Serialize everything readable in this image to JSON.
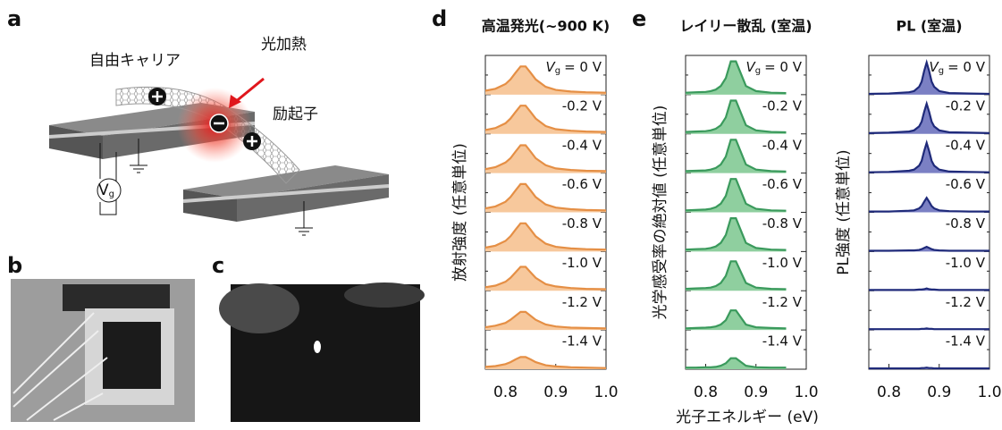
{
  "panels": {
    "a": {
      "label": "a",
      "free_carrier": "自由キャリア",
      "photoheating": "光加熱",
      "exciton": "励起子"
    },
    "b": {
      "label": "b"
    },
    "c": {
      "label": "c"
    }
  },
  "gate_symbol": {
    "main": "V",
    "sub": "g"
  },
  "x_label": "光子エネルギー (eV)",
  "chart_data": [
    {
      "type": "line",
      "panel_label": "d",
      "title": "高温発光(~900 K)",
      "y_label": "放射強度 (任意単位)",
      "color": "#e58f45",
      "fill_color": "#f7c89c",
      "x": [
        0.76,
        0.78,
        0.8,
        0.81,
        0.82,
        0.83,
        0.84,
        0.85,
        0.86,
        0.88,
        0.9,
        0.93,
        0.96,
        1.0
      ],
      "xlim": [
        0.76,
        1.0
      ],
      "xticks": [
        0.8,
        0.9,
        {
          "value": 1.0,
          "label": "1.0"
        }
      ],
      "ylim": [
        0,
        1
      ],
      "series": [
        {
          "name": "= 0 V",
          "values": [
            0.1,
            0.15,
            0.27,
            0.39,
            0.56,
            0.72,
            0.72,
            0.56,
            0.39,
            0.2,
            0.12,
            0.08,
            0.06,
            0.05
          ]
        },
        {
          "name": "-0.2 V",
          "values": [
            0.1,
            0.15,
            0.27,
            0.39,
            0.56,
            0.72,
            0.72,
            0.56,
            0.39,
            0.2,
            0.12,
            0.08,
            0.06,
            0.05
          ]
        },
        {
          "name": "-0.4 V",
          "values": [
            0.1,
            0.15,
            0.27,
            0.38,
            0.55,
            0.71,
            0.71,
            0.55,
            0.38,
            0.2,
            0.12,
            0.08,
            0.06,
            0.05
          ]
        },
        {
          "name": "-0.6 V",
          "values": [
            0.1,
            0.15,
            0.27,
            0.39,
            0.56,
            0.72,
            0.72,
            0.56,
            0.39,
            0.2,
            0.12,
            0.08,
            0.06,
            0.05
          ]
        },
        {
          "name": "-0.8 V",
          "values": [
            0.1,
            0.15,
            0.27,
            0.39,
            0.56,
            0.72,
            0.72,
            0.56,
            0.39,
            0.2,
            0.12,
            0.08,
            0.06,
            0.05
          ]
        },
        {
          "name": "-1.0 V",
          "values": [
            0.09,
            0.13,
            0.23,
            0.33,
            0.47,
            0.61,
            0.61,
            0.47,
            0.33,
            0.17,
            0.11,
            0.07,
            0.05,
            0.04
          ]
        },
        {
          "name": "-1.2 V",
          "values": [
            0.07,
            0.11,
            0.18,
            0.26,
            0.36,
            0.46,
            0.46,
            0.36,
            0.26,
            0.14,
            0.09,
            0.06,
            0.05,
            0.04
          ]
        },
        {
          "name": "-1.4 V",
          "values": [
            0.06,
            0.08,
            0.13,
            0.18,
            0.25,
            0.31,
            0.31,
            0.25,
            0.18,
            0.1,
            0.07,
            0.05,
            0.04,
            0.03
          ]
        }
      ]
    },
    {
      "type": "line",
      "panel_label": "e",
      "title": "レイリー散乱 (室温)",
      "y_label": "光学感受率の絶対値 (任意単位)",
      "color": "#3a9a5c",
      "fill_color": "#8fcf9f",
      "x": [
        0.76,
        0.78,
        0.8,
        0.81,
        0.82,
        0.83,
        0.84,
        0.85,
        0.86,
        0.88,
        0.9,
        0.93,
        0.96,
        1.0
      ],
      "xlim": [
        0.76,
        1.0
      ],
      "xticks": [
        0.8,
        0.9,
        {
          "value": 1.0,
          "label": "1.0"
        }
      ],
      "ylim": [
        0,
        1
      ],
      "series": [
        {
          "name": "= 0 V",
          "values": [
            0.05,
            0.06,
            0.07,
            0.09,
            0.13,
            0.22,
            0.42,
            0.85,
            0.85,
            0.22,
            0.09,
            0.05,
            0.04,
            null
          ]
        },
        {
          "name": "-0.2 V",
          "values": [
            0.05,
            0.06,
            0.07,
            0.09,
            0.13,
            0.22,
            0.42,
            0.85,
            0.85,
            0.22,
            0.09,
            0.05,
            0.04,
            null
          ]
        },
        {
          "name": "-0.4 V",
          "values": [
            0.05,
            0.06,
            0.07,
            0.09,
            0.13,
            0.22,
            0.42,
            0.85,
            0.85,
            0.22,
            0.09,
            0.05,
            0.04,
            null
          ]
        },
        {
          "name": "-0.6 V",
          "values": [
            0.05,
            0.06,
            0.07,
            0.09,
            0.13,
            0.22,
            0.42,
            0.85,
            0.85,
            0.22,
            0.09,
            0.05,
            0.04,
            null
          ]
        },
        {
          "name": "-0.8 V",
          "values": [
            0.05,
            0.06,
            0.07,
            0.09,
            0.13,
            0.22,
            0.42,
            0.85,
            0.85,
            0.22,
            0.09,
            0.05,
            0.04,
            null
          ]
        },
        {
          "name": "-1.0 V",
          "values": [
            0.05,
            0.06,
            0.07,
            0.08,
            0.12,
            0.2,
            0.38,
            0.75,
            0.75,
            0.2,
            0.08,
            0.05,
            0.04,
            null
          ]
        },
        {
          "name": "-1.2 V",
          "values": [
            0.04,
            0.05,
            0.06,
            0.07,
            0.09,
            0.14,
            0.25,
            0.5,
            0.5,
            0.14,
            0.07,
            0.05,
            0.04,
            null
          ]
        },
        {
          "name": "-1.4 V",
          "values": [
            0.04,
            0.04,
            0.05,
            0.05,
            0.06,
            0.09,
            0.15,
            0.28,
            0.28,
            0.09,
            0.05,
            0.04,
            0.04,
            null
          ]
        }
      ]
    },
    {
      "type": "line",
      "title": "PL (室温)",
      "y_label": "PL強度 (任意単位)",
      "color": "#1f2a7a",
      "fill_color": "#7b80c4",
      "x": [
        0.76,
        0.8,
        0.84,
        0.85,
        0.86,
        0.865,
        0.87,
        0.875,
        0.88,
        0.885,
        0.89,
        0.9,
        0.92,
        0.96,
        1.0
      ],
      "xlim": [
        0.76,
        1.0
      ],
      "xticks": [
        0.8,
        0.9,
        {
          "value": 1.0,
          "label": "1.0"
        }
      ],
      "ylim": [
        0,
        1
      ],
      "series": [
        {
          "name": "= 0 V",
          "values": [
            0.02,
            0.03,
            0.06,
            0.09,
            0.2,
            0.33,
            0.6,
            0.82,
            0.6,
            0.33,
            0.2,
            0.09,
            0.04,
            0.03,
            0.02
          ]
        },
        {
          "name": "-0.2 V",
          "values": [
            0.02,
            0.03,
            0.06,
            0.09,
            0.19,
            0.31,
            0.56,
            0.77,
            0.56,
            0.31,
            0.19,
            0.09,
            0.04,
            0.03,
            0.02
          ]
        },
        {
          "name": "-0.4 V",
          "values": [
            0.02,
            0.03,
            0.06,
            0.09,
            0.19,
            0.31,
            0.56,
            0.77,
            0.56,
            0.31,
            0.19,
            0.09,
            0.04,
            0.03,
            0.02
          ]
        },
        {
          "name": "-0.6 V",
          "values": [
            0.02,
            0.02,
            0.04,
            0.05,
            0.1,
            0.16,
            0.27,
            0.37,
            0.27,
            0.16,
            0.1,
            0.05,
            0.03,
            0.02,
            0.02
          ]
        },
        {
          "name": "-0.8 V",
          "values": [
            0.02,
            0.02,
            0.03,
            0.03,
            0.04,
            0.06,
            0.09,
            0.12,
            0.09,
            0.06,
            0.04,
            0.03,
            0.02,
            0.02,
            0.02
          ]
        },
        {
          "name": "-1.0 V",
          "values": [
            0.02,
            0.02,
            0.02,
            0.02,
            0.03,
            0.03,
            0.04,
            0.06,
            0.04,
            0.03,
            0.03,
            0.02,
            0.02,
            0.02,
            0.02
          ]
        },
        {
          "name": "-1.2 V",
          "values": [
            0.02,
            0.02,
            0.02,
            0.02,
            0.02,
            0.03,
            0.03,
            0.04,
            0.03,
            0.03,
            0.02,
            0.02,
            0.02,
            0.02,
            0.02
          ]
        },
        {
          "name": "-1.4 V",
          "values": [
            0.02,
            0.02,
            0.02,
            0.02,
            0.02,
            0.03,
            0.03,
            0.04,
            0.03,
            0.03,
            0.02,
            0.02,
            0.02,
            0.02,
            0.02
          ]
        }
      ]
    }
  ]
}
